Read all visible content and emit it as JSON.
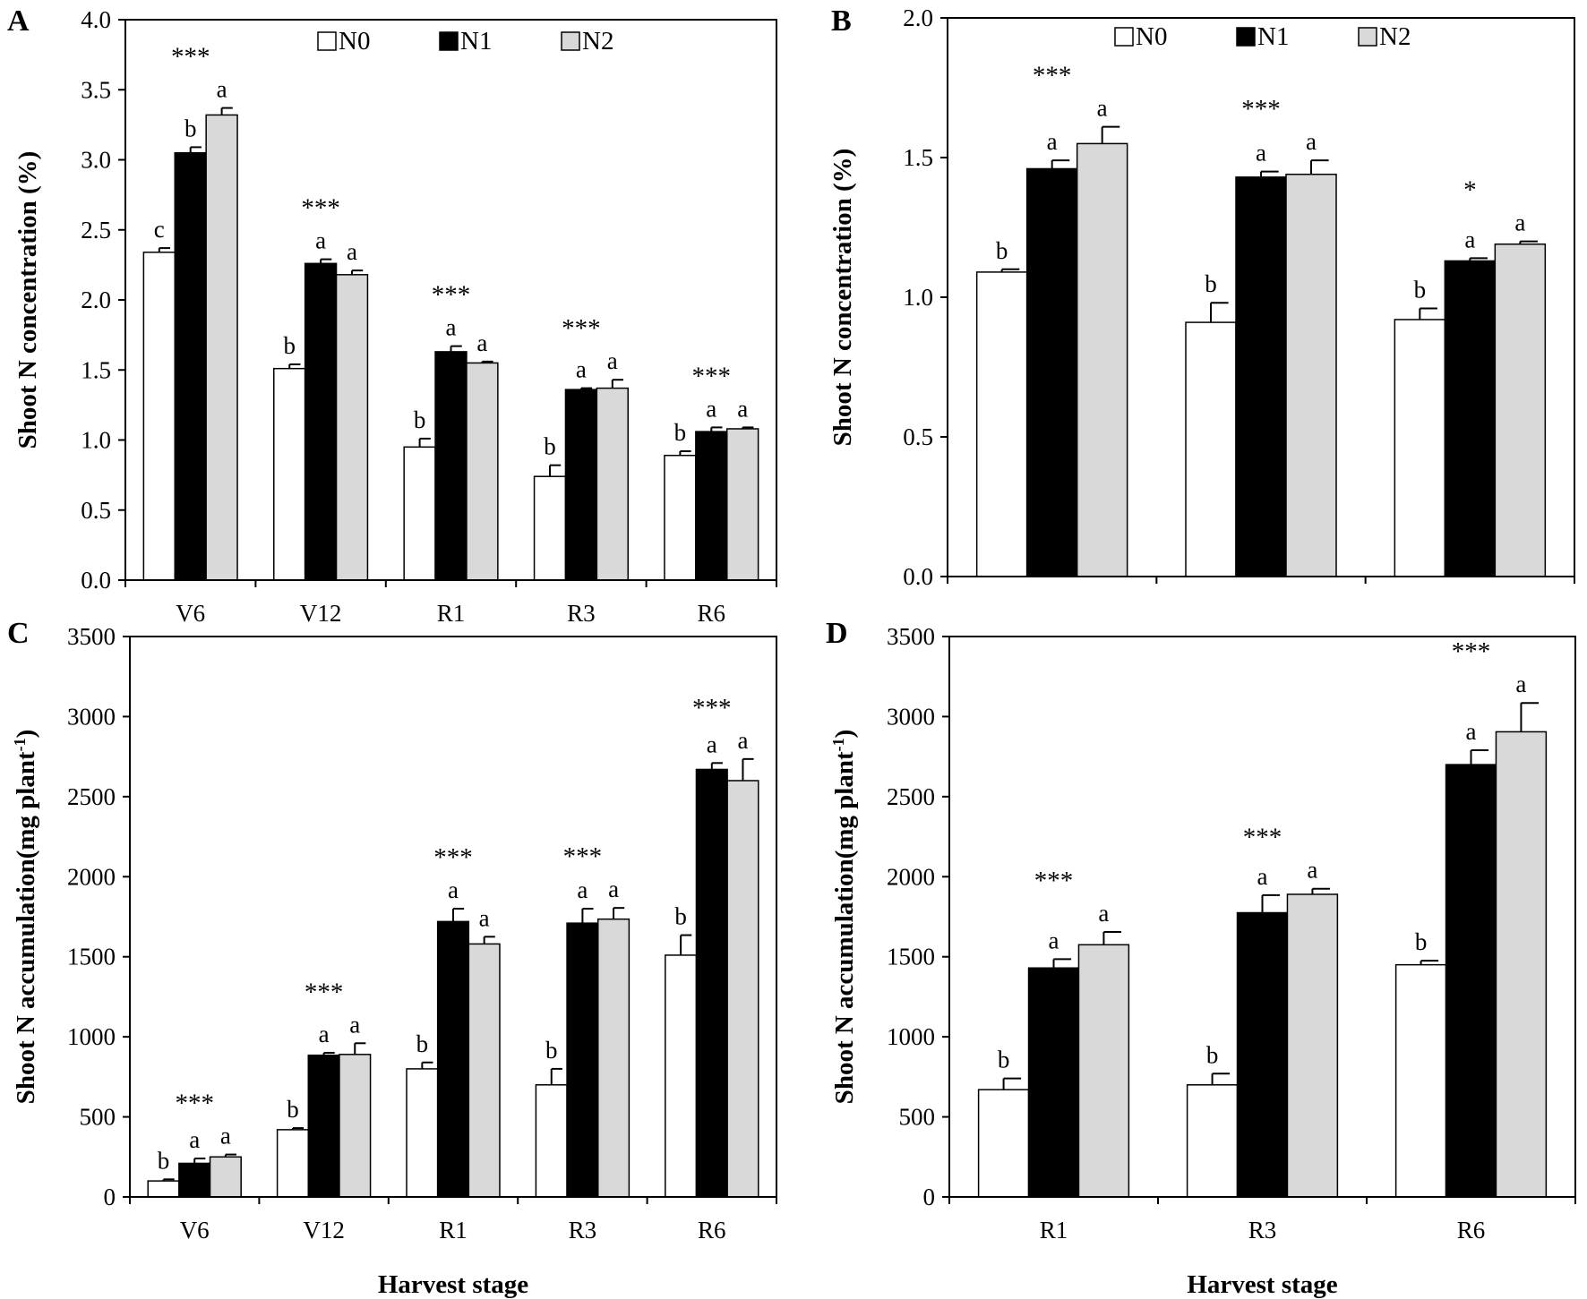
{
  "colors": {
    "N0": "#ffffff",
    "N1": "#000000",
    "N2": "#d9d9d9",
    "stroke": "#000000"
  },
  "legend": [
    {
      "key": "N0",
      "label": "N0"
    },
    {
      "key": "N1",
      "label": "N1"
    },
    {
      "key": "N2",
      "label": "N2"
    }
  ],
  "chart_data": [
    {
      "panel": "A",
      "type": "bar",
      "ylabel": "Shoot N concentration (%)",
      "xlabel": "",
      "ylim": [
        0,
        4.0
      ],
      "yticks": [
        "0.0",
        "0.5",
        "1.0",
        "1.5",
        "2.0",
        "2.5",
        "3.0",
        "3.5",
        "4.0"
      ],
      "legend_position": "top",
      "categories": [
        "V6",
        "V12",
        "R1",
        "R3",
        "R6"
      ],
      "series": [
        {
          "name": "N0",
          "values": [
            2.34,
            1.51,
            0.95,
            0.74,
            0.89
          ],
          "errors": [
            0.03,
            0.03,
            0.06,
            0.08,
            0.03
          ]
        },
        {
          "name": "N1",
          "values": [
            3.05,
            2.26,
            1.63,
            1.36,
            1.06
          ],
          "errors": [
            0.04,
            0.03,
            0.04,
            0.01,
            0.03
          ]
        },
        {
          "name": "N2",
          "values": [
            3.32,
            2.18,
            1.55,
            1.37,
            1.08
          ],
          "errors": [
            0.05,
            0.03,
            0.01,
            0.06,
            0.01
          ]
        }
      ],
      "letters": [
        [
          "c",
          "b",
          "a"
        ],
        [
          "b",
          "a",
          "a"
        ],
        [
          "b",
          "a",
          "a"
        ],
        [
          "b",
          "a",
          "a"
        ],
        [
          "b",
          "a",
          "a"
        ]
      ],
      "significance": [
        "***",
        "***",
        "***",
        "***",
        "***"
      ]
    },
    {
      "panel": "B",
      "type": "bar",
      "ylabel": "Shoot N concentration (%)",
      "xlabel": "",
      "ylim": [
        0,
        2.0
      ],
      "yticks": [
        "0.0",
        "0.5",
        "1.0",
        "1.5",
        "2.0"
      ],
      "legend_position": "top",
      "categories": [
        "R1",
        "R3",
        "R6"
      ],
      "series": [
        {
          "name": "N0",
          "values": [
            1.09,
            0.91,
            0.92
          ],
          "errors": [
            0.01,
            0.07,
            0.04
          ]
        },
        {
          "name": "N1",
          "values": [
            1.46,
            1.43,
            1.13
          ],
          "errors": [
            0.03,
            0.02,
            0.01
          ]
        },
        {
          "name": "N2",
          "values": [
            1.55,
            1.44,
            1.19
          ],
          "errors": [
            0.06,
            0.05,
            0.01
          ]
        }
      ],
      "letters": [
        [
          "b",
          "a",
          "a"
        ],
        [
          "b",
          "a",
          "a"
        ],
        [
          "b",
          "a",
          "a"
        ]
      ],
      "significance": [
        "***",
        "***",
        "*"
      ]
    },
    {
      "panel": "C",
      "type": "bar",
      "ylabel": "Shoot N accumulation(mg plant",
      "ylabel_sup": "-1",
      "ylabel_end": ")",
      "xlabel": "Harvest stage",
      "ylim": [
        0,
        3500
      ],
      "yticks": [
        "0",
        "500",
        "1000",
        "1500",
        "2000",
        "2500",
        "3000",
        "3500"
      ],
      "categories": [
        "V6",
        "V12",
        "R1",
        "R3",
        "R6"
      ],
      "series": [
        {
          "name": "N0",
          "values": [
            100,
            420,
            800,
            700,
            1510
          ],
          "errors": [
            10,
            10,
            40,
            100,
            125
          ]
        },
        {
          "name": "N1",
          "values": [
            210,
            885,
            1720,
            1710,
            2670
          ],
          "errors": [
            30,
            15,
            80,
            90,
            40
          ]
        },
        {
          "name": "N2",
          "values": [
            250,
            890,
            1580,
            1735,
            2600
          ],
          "errors": [
            15,
            70,
            45,
            70,
            135
          ]
        }
      ],
      "letters": [
        [
          "b",
          "a",
          "a"
        ],
        [
          "b",
          "a",
          "a"
        ],
        [
          "b",
          "a",
          "a"
        ],
        [
          "b",
          "a",
          "a"
        ],
        [
          "b",
          "a",
          "a"
        ]
      ],
      "significance": [
        "***",
        "***",
        "***",
        "***",
        "***"
      ]
    },
    {
      "panel": "D",
      "type": "bar",
      "ylabel": "Shoot N accumulation(mg plant",
      "ylabel_sup": "-1",
      "ylabel_end": ")",
      "xlabel": "Harvest stage",
      "ylim": [
        0,
        3500
      ],
      "yticks": [
        "0",
        "500",
        "1000",
        "1500",
        "2000",
        "2500",
        "3000",
        "3500"
      ],
      "categories": [
        "R1",
        "R3",
        "R6"
      ],
      "series": [
        {
          "name": "N0",
          "values": [
            670,
            700,
            1450
          ],
          "errors": [
            70,
            70,
            25
          ]
        },
        {
          "name": "N1",
          "values": [
            1430,
            1775,
            2700
          ],
          "errors": [
            55,
            110,
            90
          ]
        },
        {
          "name": "N2",
          "values": [
            1575,
            1890,
            2905
          ],
          "errors": [
            80,
            35,
            180
          ]
        }
      ],
      "letters": [
        [
          "b",
          "a",
          "a"
        ],
        [
          "b",
          "a",
          "a"
        ],
        [
          "b",
          "a",
          "a"
        ]
      ],
      "significance": [
        "***",
        "***",
        "***"
      ]
    }
  ]
}
